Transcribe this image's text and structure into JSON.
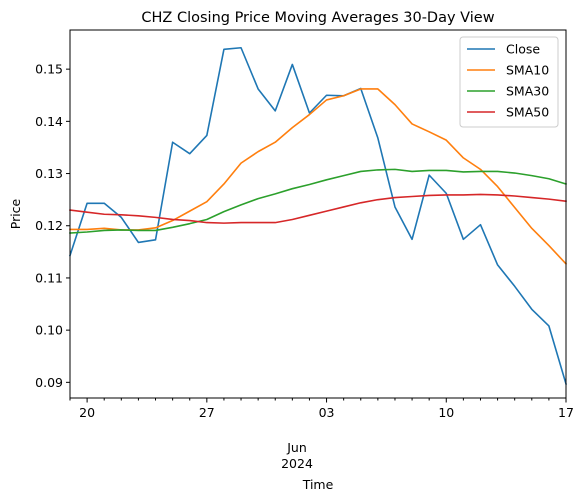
{
  "chart_data": {
    "type": "line",
    "title": "CHZ Closing Price Moving Averages 30-Day View",
    "xlabel": "Time",
    "ylabel": "Price",
    "xlim": [
      "2024-05-19",
      "2024-06-17"
    ],
    "ylim": [
      0.087,
      0.1575
    ],
    "yticks": [
      "0.09",
      "0.10",
      "0.11",
      "0.12",
      "0.13",
      "0.14",
      "0.15"
    ],
    "xticks_major": [
      {
        "date": "2024-05-20",
        "label": "20"
      },
      {
        "date": "2024-05-27",
        "label": "27"
      },
      {
        "date": "2024-06-03",
        "label": "03"
      },
      {
        "date": "2024-06-10",
        "label": "10"
      },
      {
        "date": "2024-06-17",
        "label": "17"
      }
    ],
    "x_group_label": {
      "month": "Jun",
      "year": "2024"
    },
    "grid": false,
    "legend_position": "top-right",
    "dates": [
      "2024-05-19",
      "2024-05-20",
      "2024-05-21",
      "2024-05-22",
      "2024-05-23",
      "2024-05-24",
      "2024-05-25",
      "2024-05-26",
      "2024-05-27",
      "2024-05-28",
      "2024-05-29",
      "2024-05-30",
      "2024-05-31",
      "2024-06-01",
      "2024-06-02",
      "2024-06-03",
      "2024-06-04",
      "2024-06-05",
      "2024-06-06",
      "2024-06-07",
      "2024-06-08",
      "2024-06-09",
      "2024-06-10",
      "2024-06-11",
      "2024-06-12",
      "2024-06-13",
      "2024-06-14",
      "2024-06-15",
      "2024-06-16",
      "2024-06-17"
    ],
    "series": [
      {
        "name": "Close",
        "color": "#1f77b4",
        "values": [
          0.1143,
          0.1243,
          0.1243,
          0.1216,
          0.1168,
          0.1173,
          0.136,
          0.1338,
          0.1373,
          0.1538,
          0.1541,
          0.1462,
          0.142,
          0.1509,
          0.1416,
          0.145,
          0.1449,
          0.1463,
          0.1368,
          0.1236,
          0.1174,
          0.1297,
          0.1262,
          0.1174,
          0.1202,
          0.1125,
          0.1084,
          0.104,
          0.1008,
          0.0897
        ]
      },
      {
        "name": "SMA10",
        "color": "#ff7f0e",
        "values": [
          0.1193,
          0.1193,
          0.1195,
          0.1192,
          0.1192,
          0.1196,
          0.121,
          0.1228,
          0.1246,
          0.128,
          0.132,
          0.1342,
          0.136,
          0.1388,
          0.1413,
          0.1441,
          0.1449,
          0.1462,
          0.1462,
          0.1432,
          0.1395,
          0.138,
          0.1364,
          0.133,
          0.1308,
          0.1275,
          0.1235,
          0.1195,
          0.1162,
          0.1127
        ]
      },
      {
        "name": "SMA30",
        "color": "#2ca02c",
        "values": [
          0.1186,
          0.1188,
          0.1191,
          0.1192,
          0.1191,
          0.1191,
          0.1197,
          0.1204,
          0.1212,
          0.1227,
          0.124,
          0.1252,
          0.1261,
          0.1271,
          0.1279,
          0.1288,
          0.1296,
          0.1304,
          0.1307,
          0.1308,
          0.1304,
          0.1306,
          0.1306,
          0.1303,
          0.1304,
          0.1304,
          0.1301,
          0.1296,
          0.129,
          0.128
        ]
      },
      {
        "name": "SMA50",
        "color": "#d62728",
        "values": [
          0.123,
          0.1226,
          0.1222,
          0.1221,
          0.1219,
          0.1216,
          0.1212,
          0.121,
          0.1206,
          0.1205,
          0.1206,
          0.1206,
          0.1206,
          0.1212,
          0.122,
          0.1228,
          0.1236,
          0.1244,
          0.125,
          0.1254,
          0.1256,
          0.1258,
          0.1259,
          0.1259,
          0.126,
          0.1259,
          0.1257,
          0.1254,
          0.1251,
          0.1247
        ]
      }
    ]
  }
}
